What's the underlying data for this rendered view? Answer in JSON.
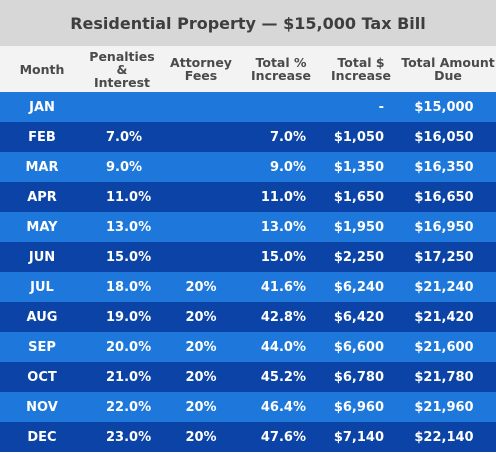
{
  "title": "Residential Property — $15,000 Tax Bill",
  "headers": {
    "month": "Month",
    "penalties": "Penalties &\nInterest",
    "attorney": "Attorney\nFees",
    "total_pct": "Total %\nIncrease",
    "total_dollar": "Total $\nIncrease",
    "total_due": "Total Amount\nDue"
  },
  "rows": [
    {
      "month": "JAN",
      "penalties": "",
      "attorney": "",
      "total_pct": "",
      "total_dollar": "-",
      "total_due": "$15,000"
    },
    {
      "month": "FEB",
      "penalties": "7.0%",
      "attorney": "",
      "total_pct": "7.0%",
      "total_dollar": "$1,050",
      "total_due": "$16,050"
    },
    {
      "month": "MAR",
      "penalties": "9.0%",
      "attorney": "",
      "total_pct": "9.0%",
      "total_dollar": "$1,350",
      "total_due": "$16,350"
    },
    {
      "month": "APR",
      "penalties": "11.0%",
      "attorney": "",
      "total_pct": "11.0%",
      "total_dollar": "$1,650",
      "total_due": "$16,650"
    },
    {
      "month": "MAY",
      "penalties": "13.0%",
      "attorney": "",
      "total_pct": "13.0%",
      "total_dollar": "$1,950",
      "total_due": "$16,950"
    },
    {
      "month": "JUN",
      "penalties": "15.0%",
      "attorney": "",
      "total_pct": "15.0%",
      "total_dollar": "$2,250",
      "total_due": "$17,250"
    },
    {
      "month": "JUL",
      "penalties": "18.0%",
      "attorney": "20%",
      "total_pct": "41.6%",
      "total_dollar": "$6,240",
      "total_due": "$21,240"
    },
    {
      "month": "AUG",
      "penalties": "19.0%",
      "attorney": "20%",
      "total_pct": "42.8%",
      "total_dollar": "$6,420",
      "total_due": "$21,420"
    },
    {
      "month": "SEP",
      "penalties": "20.0%",
      "attorney": "20%",
      "total_pct": "44.0%",
      "total_dollar": "$6,600",
      "total_due": "$21,600"
    },
    {
      "month": "OCT",
      "penalties": "21.0%",
      "attorney": "20%",
      "total_pct": "45.2%",
      "total_dollar": "$6,780",
      "total_due": "$21,780"
    },
    {
      "month": "NOV",
      "penalties": "22.0%",
      "attorney": "20%",
      "total_pct": "46.4%",
      "total_dollar": "$6,960",
      "total_due": "$21,960"
    },
    {
      "month": "DEC",
      "penalties": "23.0%",
      "attorney": "20%",
      "total_pct": "47.6%",
      "total_dollar": "$7,140",
      "total_due": "$22,140"
    }
  ],
  "colors": {
    "row_light": "#1e78dc",
    "row_dark": "#0c43a6",
    "title_bg": "#d7d7d7",
    "header_bg": "#f3f3f3"
  }
}
